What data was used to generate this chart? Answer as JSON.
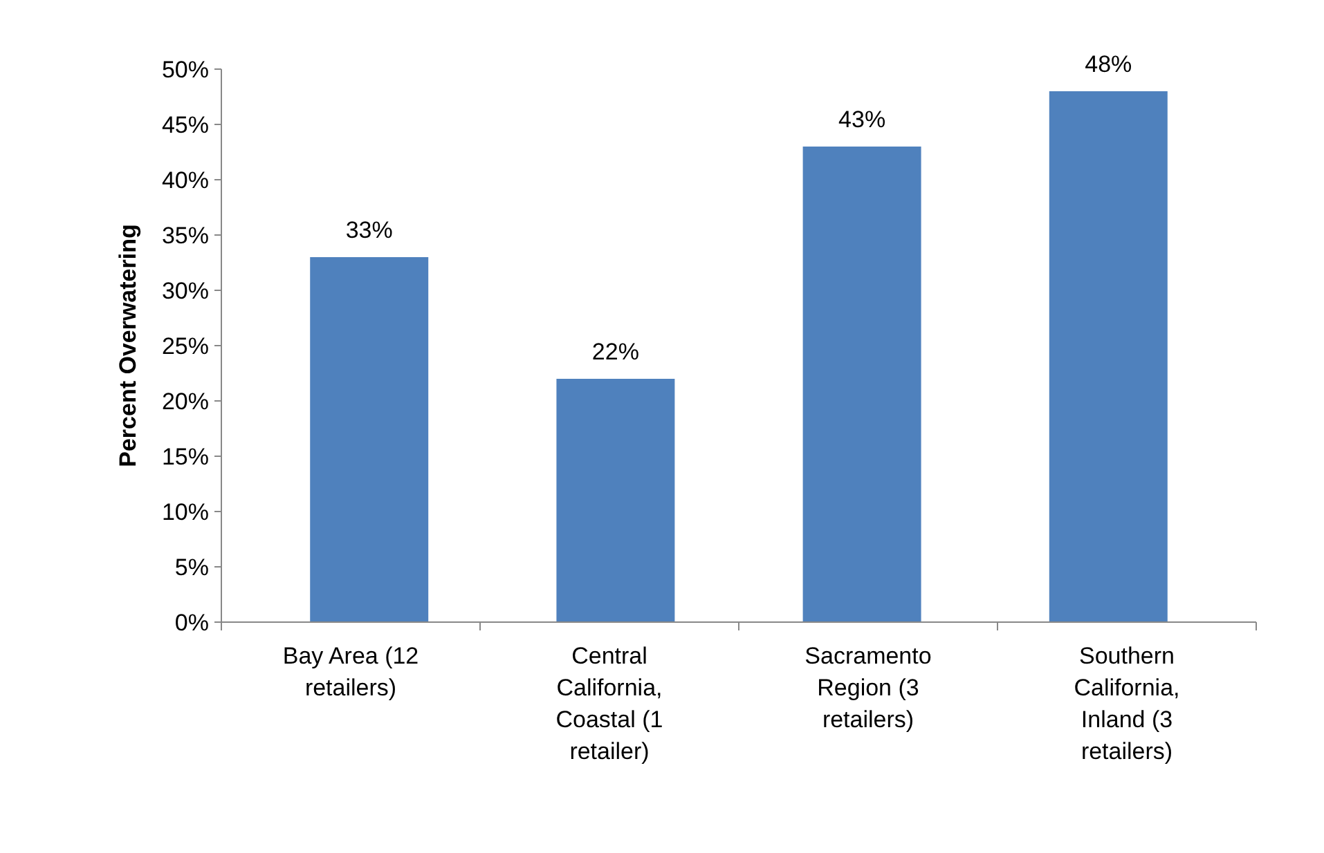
{
  "chart_data": {
    "type": "bar",
    "ylabel": "Percent Overwatering",
    "categories": [
      "Bay Area (12 retailers)",
      "Central California, Coastal (1 retailer)",
      "Sacramento Region (3 retailers)",
      "Southern California, Inland (3 retailers)"
    ],
    "values": [
      33,
      22,
      43,
      48
    ],
    "color": "#4f81bd",
    "value_labels": [
      "33%",
      "22%",
      "43%",
      "48%"
    ],
    "ylim": [
      0,
      50
    ],
    "yticks": [
      {
        "value": 0,
        "label": "0%"
      },
      {
        "value": 5,
        "label": "5%"
      },
      {
        "value": 10,
        "label": "10%"
      },
      {
        "value": 15,
        "label": "15%"
      },
      {
        "value": 20,
        "label": "20%"
      },
      {
        "value": 25,
        "label": "25%"
      },
      {
        "value": 30,
        "label": "30%"
      },
      {
        "value": 35,
        "label": "35%"
      },
      {
        "value": 40,
        "label": "40%"
      },
      {
        "value": 45,
        "label": "45%"
      },
      {
        "value": 50,
        "label": "50%"
      }
    ],
    "grid": false
  }
}
